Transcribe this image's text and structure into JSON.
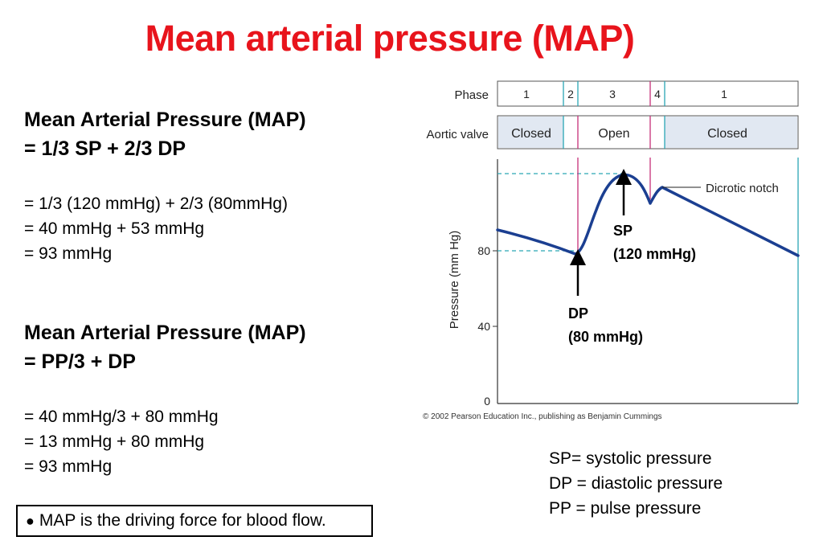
{
  "title": "Mean arterial pressure (MAP)",
  "formula1": {
    "line1": "Mean Arterial Pressure (MAP)",
    "line2": "= 1/3 SP + 2/3 DP"
  },
  "calc1": [
    "= 1/3 (120 mmHg) + 2/3 (80mmHg)",
    "= 40 mmHg + 53 mmHg",
    "= 93 mmHg"
  ],
  "formula2": {
    "line1": "Mean Arterial Pressure (MAP)",
    "line2": "= PP/3  + DP"
  },
  "calc2": [
    "= 40 mmHg/3 + 80 mmHg",
    "= 13 mmHg + 80 mmHg",
    "= 93 mmHg"
  ],
  "note": {
    "bullet": "●",
    "text": "MAP is the driving force for blood flow."
  },
  "legend": [
    "SP= systolic pressure",
    "DP = diastolic pressure",
    "PP = pulse pressure"
  ],
  "figure": {
    "phase_label": "Phase",
    "phases": [
      "1",
      "2",
      "3",
      "4",
      "1"
    ],
    "valve_label": "Aortic valve",
    "valve_states": [
      "Closed",
      "Open",
      "Closed"
    ],
    "ylabel": "Pressure (mm Hg)",
    "yticks": [
      "80",
      "40",
      "0"
    ],
    "annotation_notch": "Dicrotic notch",
    "sp_label": "SP",
    "sp_value": "(120 mmHg)",
    "dp_label": "DP",
    "dp_value": "(80 mmHg)",
    "copyright": "© 2002 Pearson Education Inc., publishing as Benjamin Cummings",
    "colors": {
      "curve": "#1b3f91",
      "teal": "#2aa6b5",
      "magenta": "#c5307a",
      "closed_fill": "#e1e8f2"
    }
  }
}
